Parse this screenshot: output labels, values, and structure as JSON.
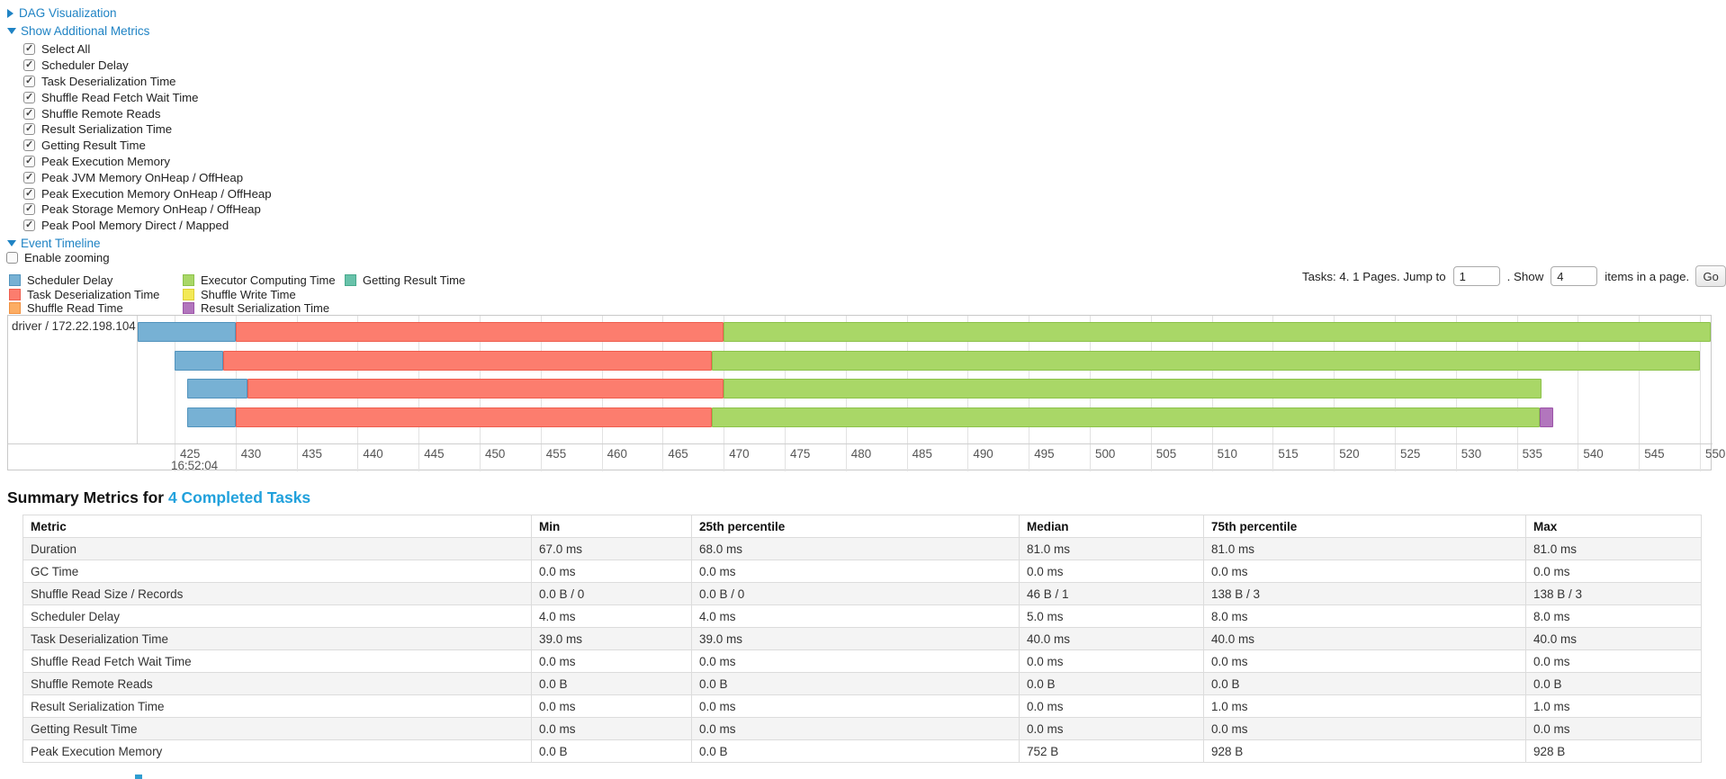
{
  "colors": {
    "link_blue": "#1f83c4",
    "title_link_blue": "#21a1dc",
    "scheduler_delay": {
      "fill": "#77b1d4",
      "border": "#5193bd"
    },
    "task_deserialization": {
      "fill": "#fc7d6e",
      "border": "#ef5d4e"
    },
    "shuffle_read": {
      "fill": "#fcad64",
      "border": "#f0903f"
    },
    "executor_computing": {
      "fill": "#a9d767",
      "border": "#8cc24a"
    },
    "shuffle_write": {
      "fill": "#f3e956",
      "border": "#ddcf35"
    },
    "result_serialization": {
      "fill": "#b276bd",
      "border": "#9c54a8"
    },
    "getting_result": {
      "fill": "#68c2aa",
      "border": "#47a98c"
    }
  },
  "controls": {
    "dag_link": "DAG Visualization",
    "metrics_link": "Show Additional Metrics",
    "metric_checkboxes": [
      "Select All",
      "Scheduler Delay",
      "Task Deserialization Time",
      "Shuffle Read Fetch Wait Time",
      "Shuffle Remote Reads",
      "Result Serialization Time",
      "Getting Result Time",
      "Peak Execution Memory",
      "Peak JVM Memory OnHeap / OffHeap",
      "Peak Execution Memory OnHeap / OffHeap",
      "Peak Storage Memory OnHeap / OffHeap",
      "Peak Pool Memory Direct / Mapped"
    ],
    "event_timeline_link": "Event Timeline",
    "enable_zooming_label": "Enable zooming"
  },
  "legend": {
    "columns": [
      [
        {
          "label": "Scheduler Delay",
          "color": "scheduler_delay"
        },
        {
          "label": "Task Deserialization Time",
          "color": "task_deserialization"
        },
        {
          "label": "Shuffle Read Time",
          "color": "shuffle_read"
        }
      ],
      [
        {
          "label": "Executor Computing Time",
          "color": "executor_computing"
        },
        {
          "label": "Shuffle Write Time",
          "color": "shuffle_write"
        },
        {
          "label": "Result Serialization Time",
          "color": "result_serialization"
        }
      ],
      [
        {
          "label": "Getting Result Time",
          "color": "getting_result"
        }
      ]
    ]
  },
  "pagination": {
    "prefix": "Tasks: 4. 1 Pages. Jump to",
    "jump_value": "1",
    "mid": ". Show",
    "show_value": "4",
    "suffix": "items in a page.",
    "go_label": "Go"
  },
  "chart_data": {
    "type": "timeline",
    "executor_label": "driver / 172.22.198.104",
    "major_time_label": "16:52:04",
    "axis": {
      "tick_start": 425,
      "tick_end": 550,
      "tick_step": 5
    },
    "tasks": [
      {
        "segments": [
          {
            "type": "scheduler_delay",
            "start": 422.0,
            "end": 430.0
          },
          {
            "type": "task_deserialization",
            "start": 430.0,
            "end": 470.0
          },
          {
            "type": "executor_computing",
            "start": 470.0,
            "end": 550.9
          }
        ]
      },
      {
        "segments": [
          {
            "type": "scheduler_delay",
            "start": 425.0,
            "end": 429.0
          },
          {
            "type": "task_deserialization",
            "start": 429.0,
            "end": 469.0
          },
          {
            "type": "executor_computing",
            "start": 469.0,
            "end": 550.0
          }
        ]
      },
      {
        "segments": [
          {
            "type": "scheduler_delay",
            "start": 426.0,
            "end": 431.0
          },
          {
            "type": "task_deserialization",
            "start": 431.0,
            "end": 470.0
          },
          {
            "type": "executor_computing",
            "start": 470.0,
            "end": 537.0
          }
        ]
      },
      {
        "segments": [
          {
            "type": "scheduler_delay",
            "start": 426.0,
            "end": 430.0
          },
          {
            "type": "task_deserialization",
            "start": 430.0,
            "end": 469.0
          },
          {
            "type": "executor_computing",
            "start": 469.0,
            "end": 536.9
          },
          {
            "type": "result_serialization",
            "start": 536.9,
            "end": 538.0
          }
        ]
      }
    ]
  },
  "summary": {
    "title_prefix": "Summary Metrics for ",
    "title_link": "4 Completed Tasks",
    "headers": [
      "Metric",
      "Min",
      "25th percentile",
      "Median",
      "75th percentile",
      "Max"
    ],
    "rows": [
      {
        "metric": "Duration",
        "values": [
          "67.0 ms",
          "68.0 ms",
          "81.0 ms",
          "81.0 ms",
          "81.0 ms"
        ]
      },
      {
        "metric": "GC Time",
        "values": [
          "0.0 ms",
          "0.0 ms",
          "0.0 ms",
          "0.0 ms",
          "0.0 ms"
        ]
      },
      {
        "metric": "Shuffle Read Size / Records",
        "values": [
          "0.0 B / 0",
          "0.0 B / 0",
          "46 B / 1",
          "138 B / 3",
          "138 B / 3"
        ]
      },
      {
        "metric": "Scheduler Delay",
        "values": [
          "4.0 ms",
          "4.0 ms",
          "5.0 ms",
          "8.0 ms",
          "8.0 ms"
        ]
      },
      {
        "metric": "Task Deserialization Time",
        "values": [
          "39.0 ms",
          "39.0 ms",
          "40.0 ms",
          "40.0 ms",
          "40.0 ms"
        ]
      },
      {
        "metric": "Shuffle Read Fetch Wait Time",
        "values": [
          "0.0 ms",
          "0.0 ms",
          "0.0 ms",
          "0.0 ms",
          "0.0 ms"
        ]
      },
      {
        "metric": "Shuffle Remote Reads",
        "values": [
          "0.0 B",
          "0.0 B",
          "0.0 B",
          "0.0 B",
          "0.0 B"
        ]
      },
      {
        "metric": "Result Serialization Time",
        "values": [
          "0.0 ms",
          "0.0 ms",
          "0.0 ms",
          "1.0 ms",
          "1.0 ms"
        ]
      },
      {
        "metric": "Getting Result Time",
        "values": [
          "0.0 ms",
          "0.0 ms",
          "0.0 ms",
          "0.0 ms",
          "0.0 ms"
        ]
      },
      {
        "metric": "Peak Execution Memory",
        "values": [
          "0.0 B",
          "0.0 B",
          "752 B",
          "928 B",
          "928 B"
        ]
      }
    ]
  }
}
